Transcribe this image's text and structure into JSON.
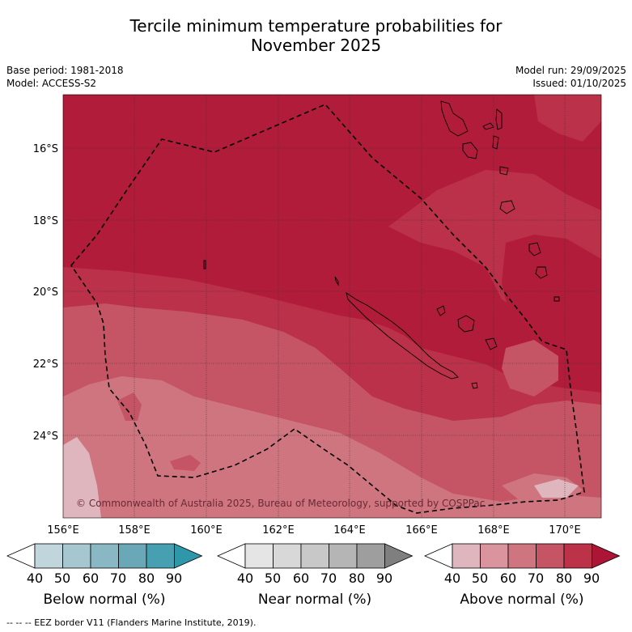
{
  "title": {
    "line1": "Tercile minimum temperature probabilities for",
    "line2": "November 2025"
  },
  "meta": {
    "base_period": "Base period: 1981-2018",
    "model": "Model: ACCESS-S2",
    "model_run": "Model run: 29/09/2025",
    "issued": "Issued: 01/10/2025"
  },
  "map": {
    "lat_labels": [
      "16°S",
      "18°S",
      "20°S",
      "22°S",
      "24°S"
    ],
    "lon_labels": [
      "156°E",
      "158°E",
      "160°E",
      "162°E",
      "164°E",
      "166°E",
      "168°E",
      "170°E"
    ],
    "copyright": "© Commonwealth of Australia 2025, Bureau of Meteorology, supported by COSPPac"
  },
  "colorbars": [
    {
      "name": "below",
      "label": "Below normal (%)",
      "ticks": [
        "40",
        "50",
        "60",
        "70",
        "80",
        "90"
      ],
      "colors": [
        "#ffffff",
        "#c1d5dc",
        "#a6c7cf",
        "#8ab7c4",
        "#6aa7b7",
        "#47a0b1",
        "#2f97aa"
      ]
    },
    {
      "name": "near",
      "label": "Near normal (%)",
      "ticks": [
        "40",
        "50",
        "60",
        "70",
        "80",
        "90"
      ],
      "colors": [
        "#ffffff",
        "#e5e5e5",
        "#d8d8d8",
        "#c8c8c8",
        "#b5b5b5",
        "#9e9e9e",
        "#7f7f7f"
      ]
    },
    {
      "name": "above",
      "label": "Above normal (%)",
      "ticks": [
        "40",
        "50",
        "60",
        "70",
        "80",
        "90"
      ],
      "colors": [
        "#ffffff",
        "#dfb6bd",
        "#d9949e",
        "#cf7580",
        "#c55465",
        "#bb3249",
        "#ad1536"
      ]
    }
  ],
  "footer": "--  --  -- EEZ border V11 (Flanders Marine Institute, 2019).",
  "colors": {
    "p90": "#b11c3a",
    "p80": "#ba3149",
    "p70": "#c55465",
    "p60": "#cf7580",
    "p50": "#dfb6bd"
  }
}
